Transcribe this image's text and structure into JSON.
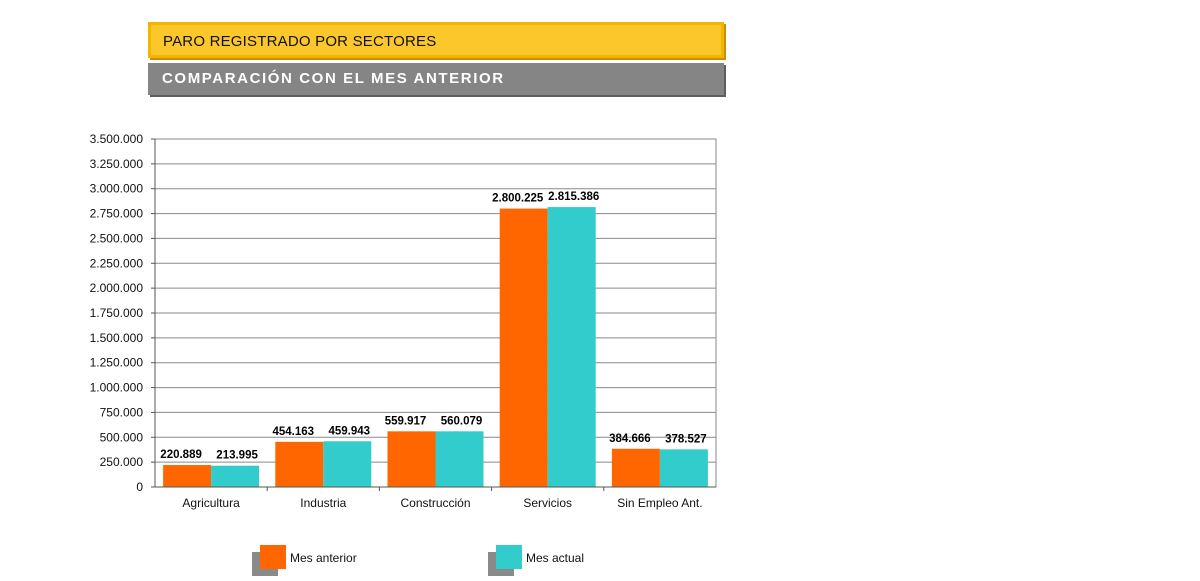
{
  "header": {
    "title": "PARO REGISTRADO POR SECTORES",
    "subtitle": "COMPARACIÓN CON EL MES ANTERIOR"
  },
  "chart_data": {
    "type": "bar",
    "title": "PARO REGISTRADO POR SECTORES",
    "subtitle": "COMPARACIÓN CON EL MES ANTERIOR",
    "xlabel": "",
    "ylabel": "",
    "categories": [
      "Agricultura",
      "Industria",
      "Construcción",
      "Servicios",
      "Sin Empleo Ant."
    ],
    "series": [
      {
        "name": "Mes anterior",
        "color": "#ff6600",
        "values": [
          220889,
          454163,
          559917,
          2800225,
          384666
        ],
        "labels": [
          "220.889",
          "454.163",
          "559.917",
          "2.800.225",
          "384.666"
        ]
      },
      {
        "name": "Mes actual",
        "color": "#33cccc",
        "values": [
          213995,
          459943,
          560079,
          2815386,
          378527
        ],
        "labels": [
          "213.995",
          "459.943",
          "560.079",
          "2.815.386",
          "378.527"
        ]
      }
    ],
    "ylim": [
      0,
      3500000
    ],
    "yticks": [
      0,
      250000,
      500000,
      750000,
      1000000,
      1250000,
      1500000,
      1750000,
      2000000,
      2250000,
      2500000,
      2750000,
      3000000,
      3250000,
      3500000
    ],
    "ytick_labels": [
      "0",
      "250.000",
      "500.000",
      "750.000",
      "1.000.000",
      "1.250.000",
      "1.500.000",
      "1.750.000",
      "2.000.000",
      "2.250.000",
      "2.500.000",
      "2.750.000",
      "3.000.000",
      "3.250.000",
      "3.500.000"
    ],
    "grid": true,
    "legend": "bottom"
  }
}
